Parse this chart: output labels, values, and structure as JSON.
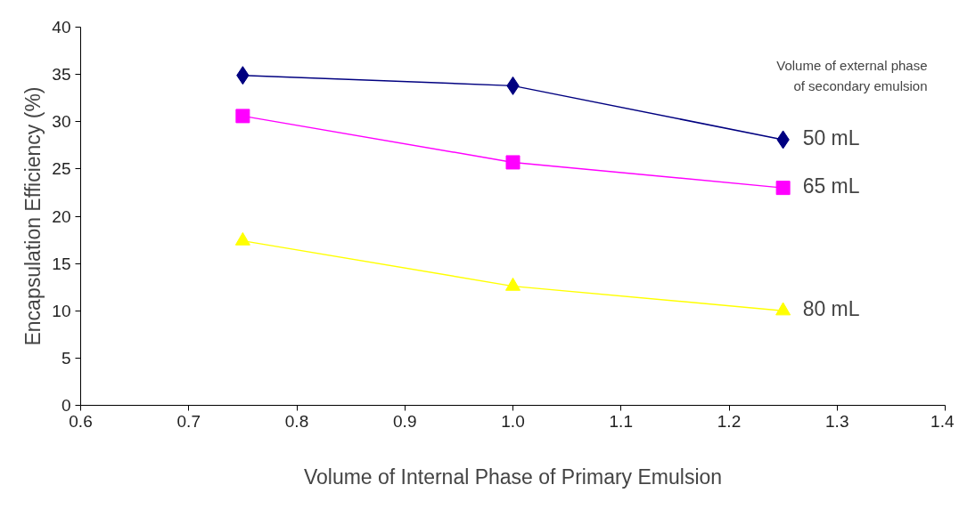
{
  "chart_data": {
    "type": "line",
    "xlabel": "Volume of Internal Phase of Primary Emulsion",
    "ylabel": "Encapsulation Efficiency (%)",
    "legend_title": "Volume of external phase\nof secondary emulsion",
    "x": [
      0.75,
      1.0,
      1.25
    ],
    "series": [
      {
        "name": "50 mL",
        "color": "#000080",
        "marker": "diamond",
        "values": [
          34.9,
          33.8,
          28.1
        ]
      },
      {
        "name": "65 mL",
        "color": "#ff00ff",
        "marker": "square",
        "values": [
          30.6,
          25.7,
          23.0
        ]
      },
      {
        "name": "80 mL",
        "color": "#ffff00",
        "marker": "triangle",
        "values": [
          17.4,
          12.6,
          10.0
        ]
      }
    ],
    "xlim": [
      0.6,
      1.4
    ],
    "xticks": [
      0.6,
      0.7,
      0.8,
      0.9,
      {
        "value": 1.0,
        "label": "1.0"
      },
      1.1,
      1.2,
      1.3,
      1.4
    ],
    "ylim": [
      0,
      40
    ],
    "yticks": [
      0,
      5,
      10,
      15,
      20,
      25,
      30,
      35,
      40
    ],
    "grid": false,
    "legend": "right"
  }
}
